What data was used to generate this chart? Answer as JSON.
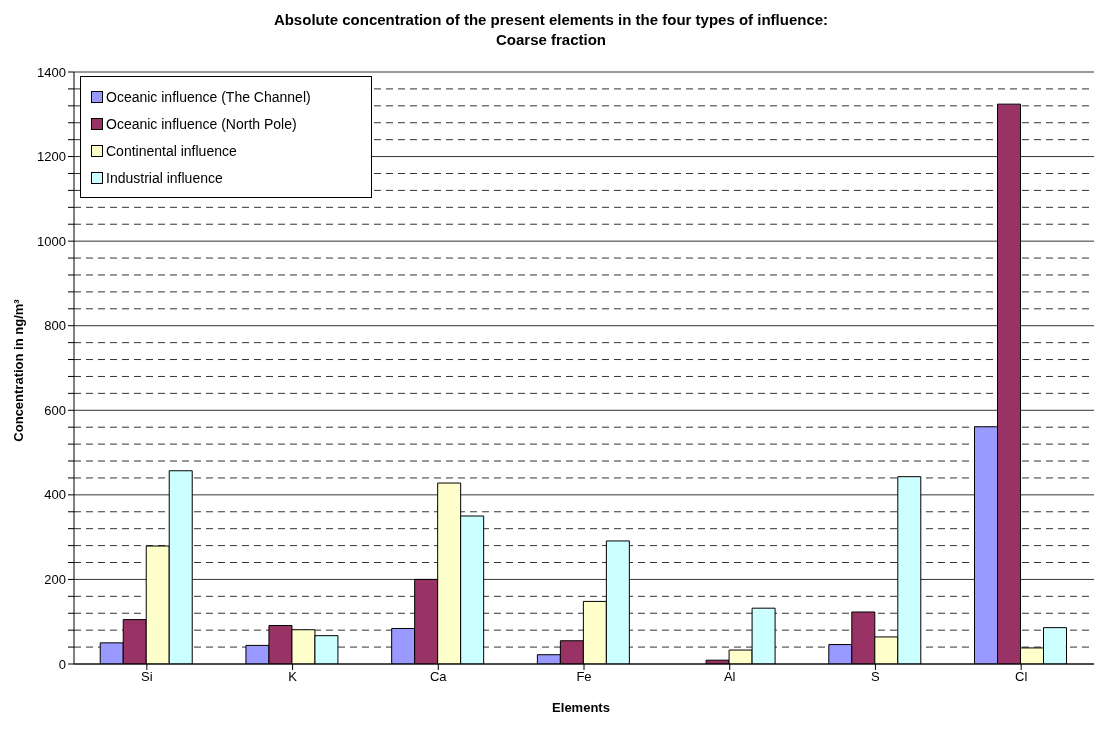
{
  "chart_data": {
    "type": "bar",
    "title": "Absolute concentration of the present elements in the four types of influence:\nCoarse fraction",
    "xlabel": "Elements",
    "ylabel": "Concentration in ng/m³",
    "categories": [
      "Si",
      "K",
      "Ca",
      "Fe",
      "Al",
      "S",
      "Cl"
    ],
    "series": [
      {
        "name": "Oceanic influence (The Channel)",
        "color": "#9999ff",
        "values": [
          50,
          44,
          84,
          22,
          0,
          46,
          561
        ]
      },
      {
        "name": "Oceanic influence (North Pole)",
        "color": "#993366",
        "values": [
          105,
          91,
          200,
          55,
          9,
          123,
          1324
        ]
      },
      {
        "name": "Continental influence",
        "color": "#ffffcc",
        "values": [
          279,
          81,
          428,
          148,
          33,
          64,
          38
        ]
      },
      {
        "name": "Industrial influence",
        "color": "#ccffff",
        "values": [
          457,
          67,
          350,
          291,
          132,
          443,
          86
        ]
      }
    ],
    "ylim": [
      0,
      1400
    ],
    "yticks": [
      0,
      {
        "value": 40,
        "label": null
      },
      {
        "value": 80,
        "label": null
      },
      {
        "value": 120,
        "label": null
      },
      {
        "value": 160,
        "label": null
      },
      200,
      {
        "value": 240,
        "label": null
      },
      {
        "value": 280,
        "label": null
      },
      {
        "value": 320,
        "label": null
      },
      {
        "value": 360,
        "label": null
      },
      400,
      {
        "value": 440,
        "label": null
      },
      {
        "value": 480,
        "label": null
      },
      {
        "value": 520,
        "label": null
      },
      {
        "value": 560,
        "label": null
      },
      600,
      {
        "value": 640,
        "label": null
      },
      {
        "value": 680,
        "label": null
      },
      {
        "value": 720,
        "label": null
      },
      {
        "value": 760,
        "label": null
      },
      800,
      {
        "value": 840,
        "label": null
      },
      {
        "value": 880,
        "label": null
      },
      {
        "value": 920,
        "label": null
      },
      {
        "value": 960,
        "label": null
      },
      1000,
      {
        "value": 1040,
        "label": null
      },
      {
        "value": 1080,
        "label": null
      },
      {
        "value": 1120,
        "label": null
      },
      {
        "value": 1160,
        "label": null
      },
      1200,
      {
        "value": 1240,
        "label": null
      },
      {
        "value": 1280,
        "label": null
      },
      {
        "value": 1320,
        "label": null
      },
      {
        "value": 1360,
        "label": null
      },
      1400
    ],
    "grid": "y",
    "legend": "top left"
  }
}
